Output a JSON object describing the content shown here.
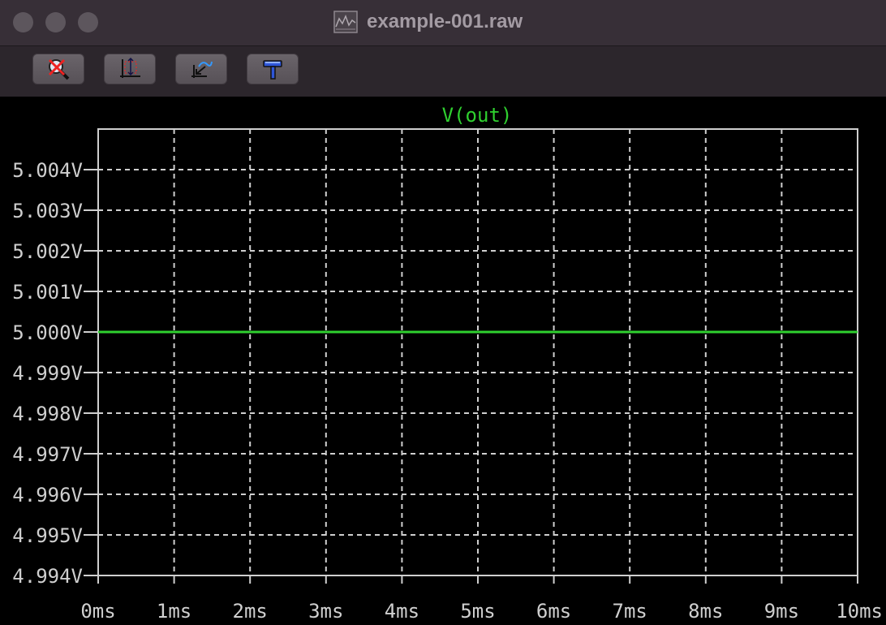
{
  "window": {
    "title": "example-001.raw",
    "title_icon": "waveform-document-icon"
  },
  "toolbar": {
    "buttons": [
      {
        "name": "zoom-reset-button",
        "icon": "magnifier-cancel-icon"
      },
      {
        "name": "zoom-extents-button",
        "icon": "zoom-extents-icon"
      },
      {
        "name": "zoom-back-button",
        "icon": "zoom-back-icon"
      },
      {
        "name": "autorange-button",
        "icon": "hammer-icon"
      }
    ]
  },
  "colors": {
    "trace": "#2fd02f",
    "grid": "#cfcfcf",
    "axis_text": "#cfcfcf",
    "plot_bg": "#000000"
  },
  "chart_data": {
    "type": "line",
    "title": "V(out)",
    "series": [
      {
        "name": "V(out)",
        "x": [
          0,
          10
        ],
        "y": [
          5.0,
          5.0
        ]
      }
    ],
    "xlabel": "",
    "ylabel": "",
    "xlim": [
      0,
      10
    ],
    "ylim": [
      4.994,
      5.005
    ],
    "x_ticks": [
      0,
      1,
      2,
      3,
      4,
      5,
      6,
      7,
      8,
      9,
      10
    ],
    "x_tick_labels": [
      "0ms",
      "1ms",
      "2ms",
      "3ms",
      "4ms",
      "5ms",
      "6ms",
      "7ms",
      "8ms",
      "9ms",
      "10ms"
    ],
    "y_ticks": [
      4.994,
      4.995,
      4.996,
      4.997,
      4.998,
      4.999,
      5.0,
      5.001,
      5.002,
      5.003,
      5.004
    ],
    "y_tick_labels": [
      "4.994V",
      "4.995V",
      "4.996V",
      "4.997V",
      "4.998V",
      "4.999V",
      "5.000V",
      "5.001V",
      "5.002V",
      "5.003V",
      "5.004V"
    ],
    "grid": true,
    "grid_style": "dashed"
  }
}
